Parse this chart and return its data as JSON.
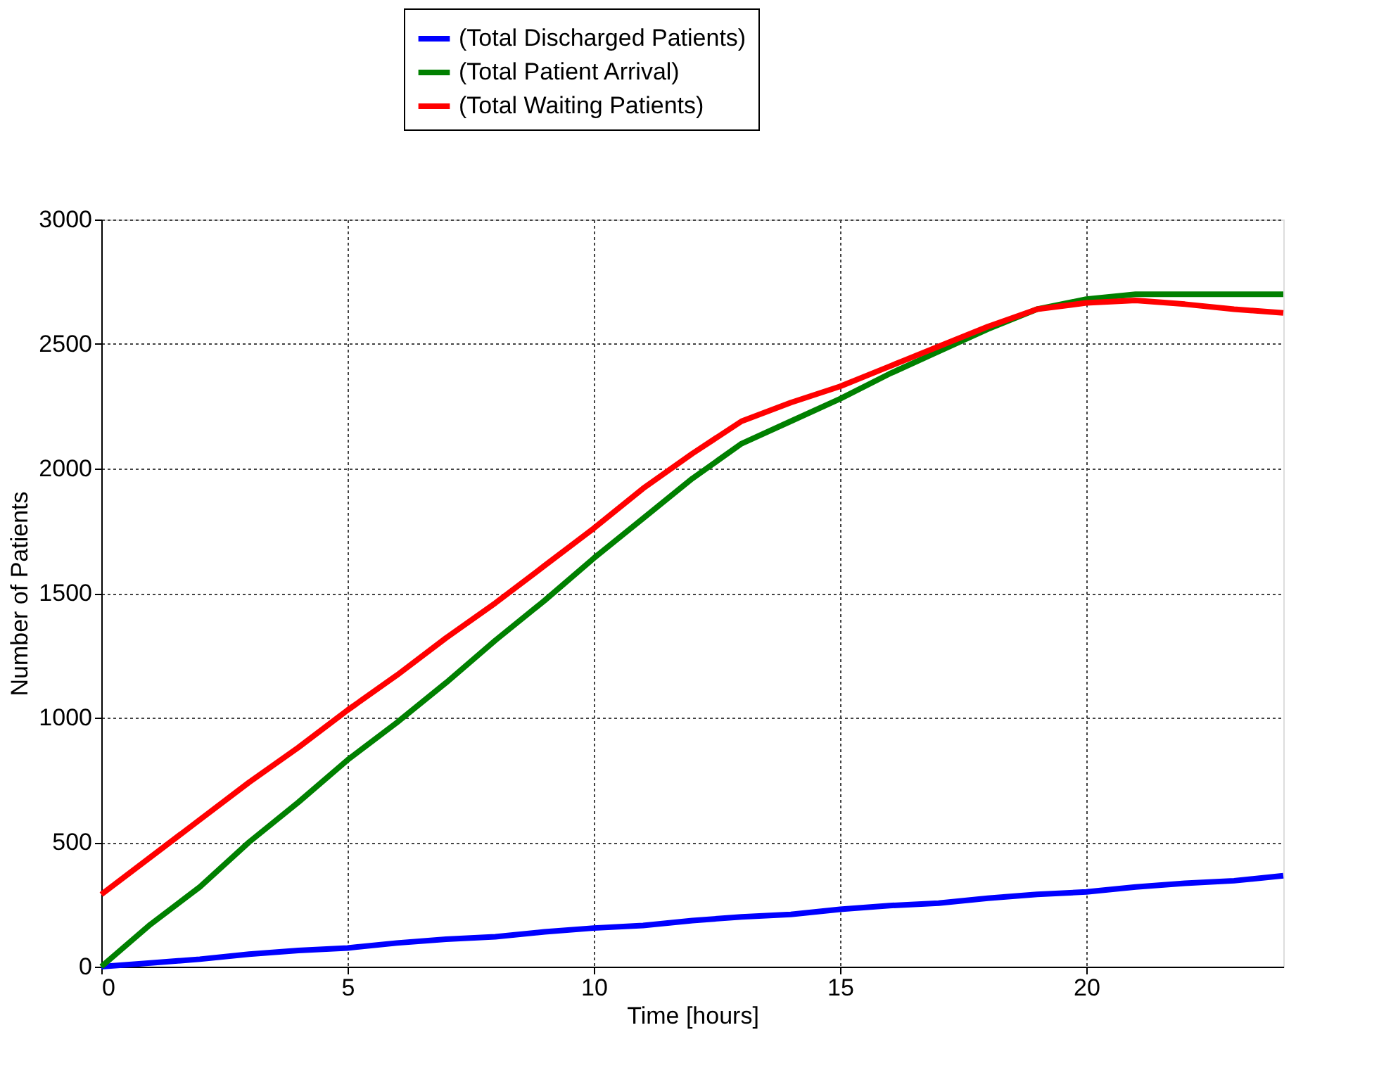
{
  "chart_data": {
    "type": "line",
    "xlabel": "Time [hours]",
    "ylabel": "Number of Patients",
    "x": [
      0,
      1,
      2,
      3,
      4,
      5,
      6,
      7,
      8,
      9,
      10,
      11,
      12,
      13,
      14,
      15,
      16,
      17,
      18,
      19,
      20,
      21,
      22,
      23,
      24
    ],
    "series": [
      {
        "name": "(Total Discharged Patients)",
        "color": "#0000ff",
        "values": [
          0,
          15,
          30,
          50,
          65,
          75,
          95,
          110,
          120,
          140,
          155,
          165,
          185,
          200,
          210,
          230,
          245,
          255,
          275,
          290,
          300,
          320,
          335,
          345,
          365
        ]
      },
      {
        "name": "(Total Patient Arrival)",
        "color": "#008000",
        "values": [
          0,
          170,
          320,
          500,
          660,
          830,
          980,
          1140,
          1310,
          1470,
          1640,
          1800,
          1960,
          2100,
          2190,
          2280,
          2380,
          2470,
          2560,
          2640,
          2680,
          2700,
          2700,
          2700,
          2700
        ]
      },
      {
        "name": "(Total Waiting Patients)",
        "color": "#ff0000",
        "values": [
          290,
          440,
          590,
          740,
          880,
          1030,
          1170,
          1320,
          1460,
          1610,
          1760,
          1920,
          2060,
          2190,
          2265,
          2330,
          2410,
          2490,
          2570,
          2640,
          2665,
          2675,
          2660,
          2640,
          2625
        ]
      }
    ],
    "xlim": [
      0,
      24
    ],
    "ylim": [
      0,
      3000
    ],
    "xticks": [
      0,
      5,
      10,
      15,
      20
    ],
    "yticks": [
      0,
      500,
      1000,
      1500,
      2000,
      2500,
      3000
    ],
    "grid": true,
    "legend": "top",
    "line_style": "solid",
    "marker": "none"
  }
}
